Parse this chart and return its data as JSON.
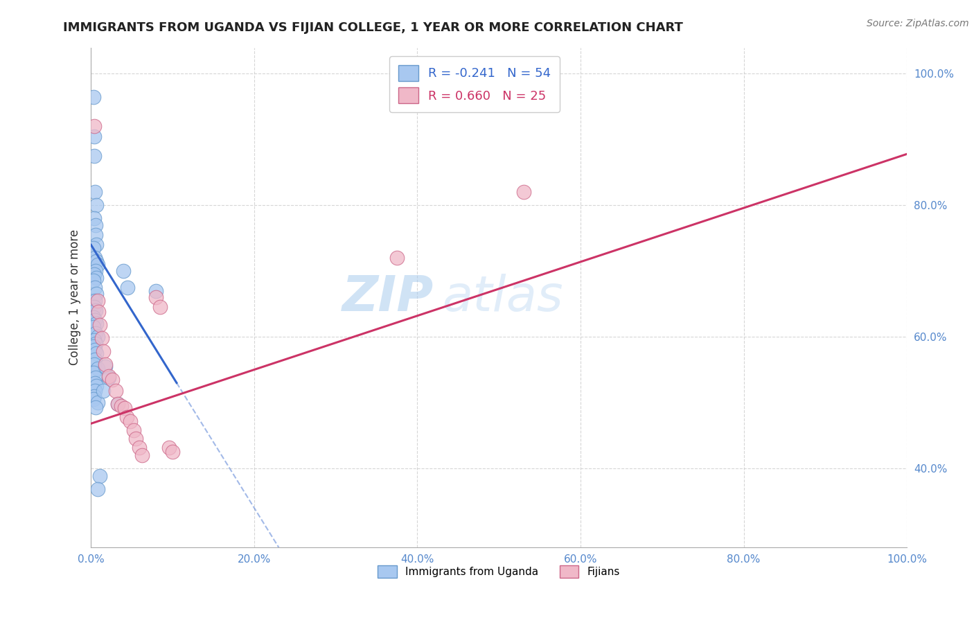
{
  "title": "IMMIGRANTS FROM UGANDA VS FIJIAN COLLEGE, 1 YEAR OR MORE CORRELATION CHART",
  "source_text": "Source: ZipAtlas.com",
  "ylabel": "College, 1 year or more",
  "xlim": [
    0.0,
    1.0
  ],
  "ylim": [
    0.28,
    1.04
  ],
  "xtick_vals": [
    0.0,
    0.2,
    0.4,
    0.6,
    0.8,
    1.0
  ],
  "xtick_labels": [
    "0.0%",
    "20.0%",
    "40.0%",
    "60.0%",
    "80.0%",
    "100.0%"
  ],
  "ytick_vals": [
    0.4,
    0.6,
    0.8,
    1.0
  ],
  "ytick_labels": [
    "40.0%",
    "60.0%",
    "80.0%",
    "100.0%"
  ],
  "legend_labels": [
    "Immigrants from Uganda",
    "Fijians"
  ],
  "legend_r_lines": [
    "R = -0.241   N = 54",
    "R = 0.660   N = 25"
  ],
  "watermark_zip": "ZIP",
  "watermark_atlas": "atlas",
  "blue_scatter": [
    [
      0.003,
      0.965
    ],
    [
      0.004,
      0.905
    ],
    [
      0.004,
      0.875
    ],
    [
      0.005,
      0.82
    ],
    [
      0.007,
      0.8
    ],
    [
      0.004,
      0.78
    ],
    [
      0.006,
      0.77
    ],
    [
      0.006,
      0.755
    ],
    [
      0.007,
      0.74
    ],
    [
      0.003,
      0.735
    ],
    [
      0.005,
      0.72
    ],
    [
      0.007,
      0.715
    ],
    [
      0.008,
      0.71
    ],
    [
      0.006,
      0.7
    ],
    [
      0.004,
      0.695
    ],
    [
      0.007,
      0.69
    ],
    [
      0.003,
      0.685
    ],
    [
      0.005,
      0.675
    ],
    [
      0.007,
      0.665
    ],
    [
      0.005,
      0.655
    ],
    [
      0.004,
      0.645
    ],
    [
      0.006,
      0.64
    ],
    [
      0.003,
      0.63
    ],
    [
      0.005,
      0.625
    ],
    [
      0.007,
      0.62
    ],
    [
      0.003,
      0.615
    ],
    [
      0.006,
      0.605
    ],
    [
      0.008,
      0.6
    ],
    [
      0.004,
      0.595
    ],
    [
      0.006,
      0.59
    ],
    [
      0.003,
      0.585
    ],
    [
      0.005,
      0.58
    ],
    [
      0.007,
      0.575
    ],
    [
      0.005,
      0.565
    ],
    [
      0.004,
      0.558
    ],
    [
      0.008,
      0.552
    ],
    [
      0.003,
      0.545
    ],
    [
      0.006,
      0.538
    ],
    [
      0.005,
      0.53
    ],
    [
      0.007,
      0.525
    ],
    [
      0.005,
      0.518
    ],
    [
      0.004,
      0.51
    ],
    [
      0.003,
      0.505
    ],
    [
      0.008,
      0.5
    ],
    [
      0.006,
      0.493
    ],
    [
      0.04,
      0.7
    ],
    [
      0.045,
      0.675
    ],
    [
      0.018,
      0.555
    ],
    [
      0.022,
      0.538
    ],
    [
      0.015,
      0.518
    ],
    [
      0.033,
      0.498
    ],
    [
      0.011,
      0.388
    ],
    [
      0.008,
      0.368
    ],
    [
      0.08,
      0.67
    ]
  ],
  "pink_scatter": [
    [
      0.004,
      0.92
    ],
    [
      0.008,
      0.655
    ],
    [
      0.009,
      0.638
    ],
    [
      0.011,
      0.618
    ],
    [
      0.013,
      0.598
    ],
    [
      0.015,
      0.578
    ],
    [
      0.018,
      0.558
    ],
    [
      0.022,
      0.54
    ],
    [
      0.026,
      0.535
    ],
    [
      0.03,
      0.518
    ],
    [
      0.033,
      0.498
    ],
    [
      0.037,
      0.495
    ],
    [
      0.041,
      0.492
    ],
    [
      0.044,
      0.478
    ],
    [
      0.048,
      0.472
    ],
    [
      0.08,
      0.66
    ],
    [
      0.085,
      0.645
    ],
    [
      0.052,
      0.458
    ],
    [
      0.055,
      0.445
    ],
    [
      0.059,
      0.432
    ],
    [
      0.063,
      0.42
    ],
    [
      0.096,
      0.432
    ],
    [
      0.1,
      0.425
    ],
    [
      0.375,
      0.72
    ],
    [
      0.53,
      0.82
    ]
  ],
  "blue_line": [
    [
      0.0,
      0.74
    ],
    [
      0.105,
      0.53
    ]
  ],
  "blue_dashed_line": [
    [
      0.105,
      0.53
    ],
    [
      0.26,
      0.22
    ]
  ],
  "pink_line": [
    [
      0.0,
      0.468
    ],
    [
      1.0,
      0.878
    ]
  ],
  "blue_dot_color": "#a8c8f0",
  "blue_edge_color": "#6699cc",
  "blue_line_color": "#3366cc",
  "pink_dot_color": "#f0b8c8",
  "pink_edge_color": "#cc6688",
  "pink_line_color": "#cc3366",
  "grid_color": "#cccccc",
  "bg_color": "#ffffff",
  "title_color": "#222222",
  "tick_color": "#5588cc",
  "title_fontsize": 13,
  "ylabel_fontsize": 12,
  "tick_fontsize": 11,
  "legend_fontsize": 13,
  "source_fontsize": 10
}
